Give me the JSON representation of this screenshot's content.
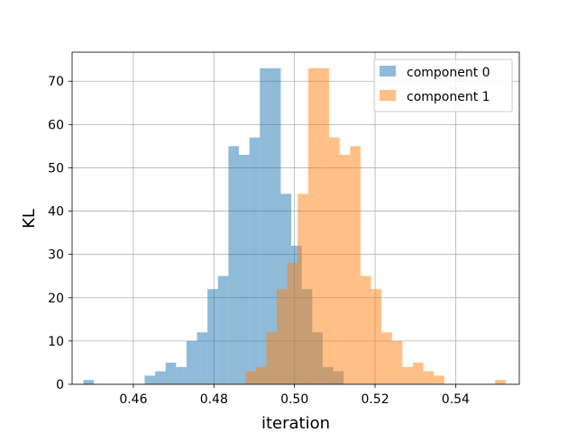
{
  "chart_data": {
    "type": "histogram",
    "xlabel": "iteration",
    "ylabel": "KL",
    "xlim": [
      0.4448,
      0.5558
    ],
    "ylim": [
      0,
      76.7
    ],
    "xticks": [
      0.46,
      0.48,
      0.5,
      0.52,
      0.54
    ],
    "xtick_labels": [
      "0.46",
      "0.48",
      "0.50",
      "0.52",
      "0.54"
    ],
    "yticks": [
      0,
      10,
      20,
      30,
      40,
      50,
      60,
      70
    ],
    "ytick_labels": [
      "0",
      "10",
      "20",
      "30",
      "40",
      "50",
      "60",
      "70"
    ],
    "grid": true,
    "legend_position": "top-right",
    "series": [
      {
        "name": "component 0",
        "color": "#1f77b4",
        "alpha": 0.5,
        "bins": [
          {
            "x0": 0.4476,
            "x1": 0.4502,
            "count": 1
          },
          {
            "x0": 0.4502,
            "x1": 0.4628,
            "count": 0
          },
          {
            "x0": 0.4628,
            "x1": 0.4654,
            "count": 2
          },
          {
            "x0": 0.4654,
            "x1": 0.468,
            "count": 3
          },
          {
            "x0": 0.468,
            "x1": 0.4706,
            "count": 5
          },
          {
            "x0": 0.4706,
            "x1": 0.4732,
            "count": 4
          },
          {
            "x0": 0.4732,
            "x1": 0.4758,
            "count": 10
          },
          {
            "x0": 0.4758,
            "x1": 0.4784,
            "count": 12
          },
          {
            "x0": 0.4784,
            "x1": 0.481,
            "count": 22
          },
          {
            "x0": 0.481,
            "x1": 0.4836,
            "count": 25
          },
          {
            "x0": 0.4836,
            "x1": 0.4862,
            "count": 55
          },
          {
            "x0": 0.4862,
            "x1": 0.4888,
            "count": 53
          },
          {
            "x0": 0.4888,
            "x1": 0.4914,
            "count": 57
          },
          {
            "x0": 0.4914,
            "x1": 0.494,
            "count": 73
          },
          {
            "x0": 0.494,
            "x1": 0.4966,
            "count": 73
          },
          {
            "x0": 0.4966,
            "x1": 0.4992,
            "count": 44
          },
          {
            "x0": 0.4992,
            "x1": 0.5018,
            "count": 32
          },
          {
            "x0": 0.5018,
            "x1": 0.5044,
            "count": 22
          },
          {
            "x0": 0.5044,
            "x1": 0.507,
            "count": 12
          },
          {
            "x0": 0.507,
            "x1": 0.5096,
            "count": 4
          },
          {
            "x0": 0.5096,
            "x1": 0.5122,
            "count": 3
          }
        ]
      },
      {
        "name": "component 1",
        "color": "#ff7f0e",
        "alpha": 0.5,
        "bins": [
          {
            "x0": 0.4878,
            "x1": 0.4904,
            "count": 3
          },
          {
            "x0": 0.4904,
            "x1": 0.493,
            "count": 4
          },
          {
            "x0": 0.493,
            "x1": 0.4956,
            "count": 12
          },
          {
            "x0": 0.4956,
            "x1": 0.4982,
            "count": 22
          },
          {
            "x0": 0.4982,
            "x1": 0.5008,
            "count": 28
          },
          {
            "x0": 0.5008,
            "x1": 0.5034,
            "count": 44
          },
          {
            "x0": 0.5034,
            "x1": 0.506,
            "count": 73
          },
          {
            "x0": 0.506,
            "x1": 0.5086,
            "count": 73
          },
          {
            "x0": 0.5086,
            "x1": 0.5112,
            "count": 57
          },
          {
            "x0": 0.5112,
            "x1": 0.5138,
            "count": 53
          },
          {
            "x0": 0.5138,
            "x1": 0.5164,
            "count": 55
          },
          {
            "x0": 0.5164,
            "x1": 0.519,
            "count": 25
          },
          {
            "x0": 0.519,
            "x1": 0.5216,
            "count": 22
          },
          {
            "x0": 0.5216,
            "x1": 0.5242,
            "count": 12
          },
          {
            "x0": 0.5242,
            "x1": 0.5268,
            "count": 10
          },
          {
            "x0": 0.5268,
            "x1": 0.5294,
            "count": 4
          },
          {
            "x0": 0.5294,
            "x1": 0.532,
            "count": 5
          },
          {
            "x0": 0.532,
            "x1": 0.5346,
            "count": 3
          },
          {
            "x0": 0.5346,
            "x1": 0.5372,
            "count": 2
          },
          {
            "x0": 0.5372,
            "x1": 0.5498,
            "count": 0
          },
          {
            "x0": 0.5498,
            "x1": 0.5524,
            "count": 1
          }
        ]
      }
    ]
  }
}
